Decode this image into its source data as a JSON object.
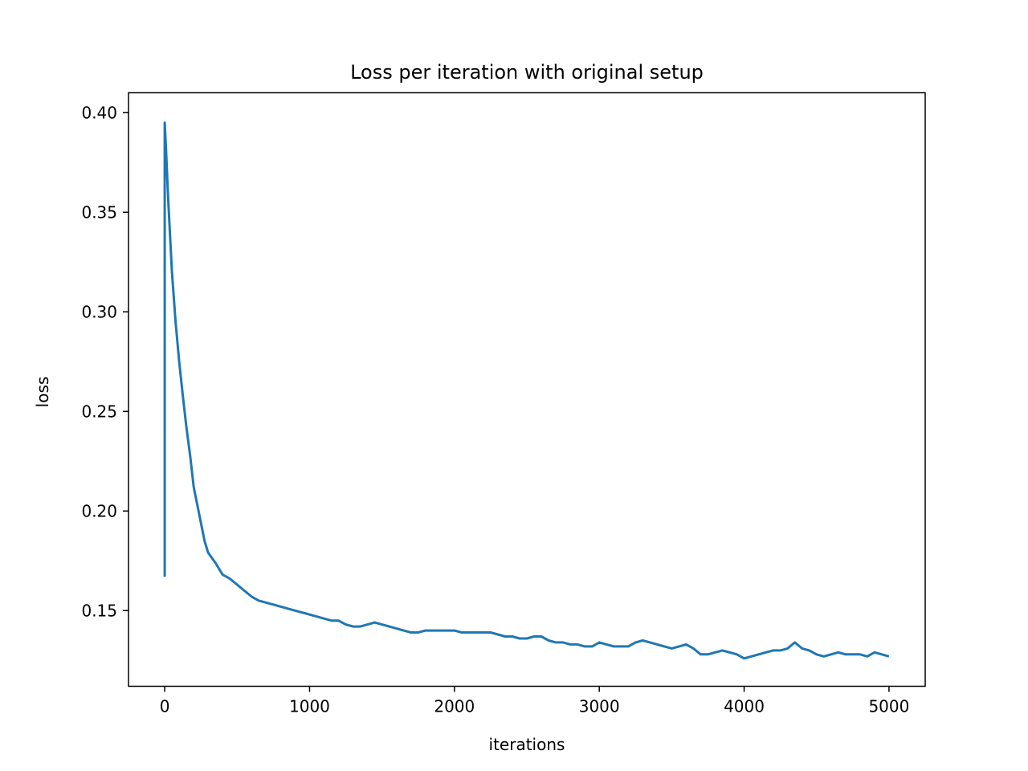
{
  "chart_data": {
    "type": "line",
    "title": "Loss per iteration with original setup",
    "xlabel": "iterations",
    "ylabel": "loss",
    "xlim": [
      -250,
      5250
    ],
    "ylim": [
      0.112,
      0.41
    ],
    "xticks": [
      0,
      1000,
      2000,
      3000,
      4000,
      5000
    ],
    "xtick_labels": [
      "0",
      "1000",
      "2000",
      "3000",
      "4000",
      "5000"
    ],
    "yticks": [
      0.15,
      0.2,
      0.25,
      0.3,
      0.35,
      0.4
    ],
    "ytick_labels": [
      "0.15",
      "0.20",
      "0.25",
      "0.30",
      "0.35",
      "0.40"
    ],
    "grid": false,
    "color": "#1f77b4",
    "series": [
      {
        "x": [
          0,
          0,
          10,
          25,
          50,
          75,
          100,
          125,
          150,
          175,
          200,
          225,
          250,
          275,
          300,
          350,
          400,
          450,
          500,
          550,
          600,
          650,
          700,
          750,
          800,
          850,
          900,
          950,
          1000,
          1050,
          1100,
          1150,
          1200,
          1250,
          1300,
          1350,
          1400,
          1450,
          1500,
          1550,
          1600,
          1650,
          1700,
          1750,
          1800,
          1850,
          1900,
          1950,
          2000,
          2050,
          2100,
          2150,
          2200,
          2250,
          2300,
          2350,
          2400,
          2450,
          2500,
          2550,
          2600,
          2650,
          2700,
          2750,
          2800,
          2850,
          2900,
          2950,
          3000,
          3050,
          3100,
          3150,
          3200,
          3250,
          3300,
          3350,
          3400,
          3450,
          3500,
          3550,
          3600,
          3650,
          3700,
          3750,
          3800,
          3850,
          3900,
          3950,
          4000,
          4050,
          4100,
          4150,
          4200,
          4250,
          4300,
          4350,
          4400,
          4450,
          4500,
          4550,
          4600,
          4650,
          4700,
          4750,
          4800,
          4850,
          4900,
          4950,
          5000
        ],
        "y": [
          0.167,
          0.395,
          0.38,
          0.355,
          0.32,
          0.295,
          0.275,
          0.258,
          0.242,
          0.228,
          0.212,
          0.203,
          0.194,
          0.185,
          0.179,
          0.174,
          0.168,
          0.166,
          0.163,
          0.16,
          0.157,
          0.155,
          0.154,
          0.153,
          0.152,
          0.151,
          0.15,
          0.149,
          0.148,
          0.147,
          0.146,
          0.145,
          0.145,
          0.143,
          0.142,
          0.142,
          0.143,
          0.144,
          0.143,
          0.142,
          0.141,
          0.14,
          0.139,
          0.139,
          0.14,
          0.14,
          0.14,
          0.14,
          0.14,
          0.139,
          0.139,
          0.139,
          0.139,
          0.139,
          0.138,
          0.137,
          0.137,
          0.136,
          0.136,
          0.137,
          0.137,
          0.135,
          0.134,
          0.134,
          0.133,
          0.133,
          0.132,
          0.132,
          0.134,
          0.133,
          0.132,
          0.132,
          0.132,
          0.134,
          0.135,
          0.134,
          0.133,
          0.132,
          0.131,
          0.132,
          0.133,
          0.131,
          0.128,
          0.128,
          0.129,
          0.13,
          0.129,
          0.128,
          0.126,
          0.127,
          0.128,
          0.129,
          0.13,
          0.13,
          0.131,
          0.134,
          0.131,
          0.13,
          0.128,
          0.127,
          0.128,
          0.129,
          0.128,
          0.128,
          0.128,
          0.127,
          0.129,
          0.128,
          0.127
        ]
      }
    ]
  }
}
